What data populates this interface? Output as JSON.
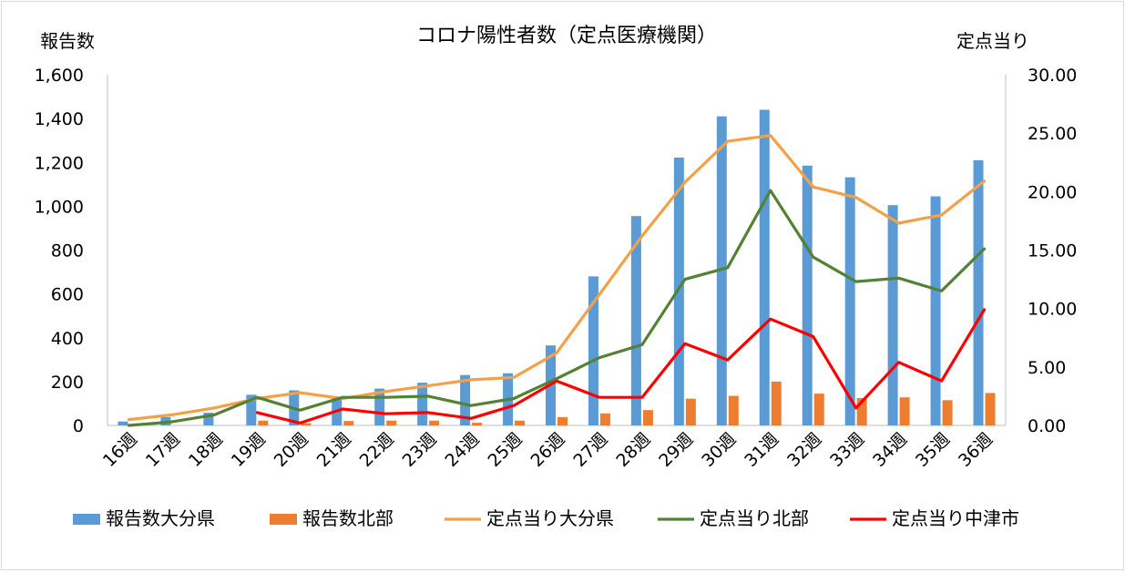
{
  "chart_data": {
    "type": "bar+line",
    "title": "コロナ陽性者数（定点医療機関）",
    "ylabel_left": "報告数",
    "ylabel_right": "定点当り",
    "ylim_left": [
      0,
      1600
    ],
    "ylim_right": [
      0,
      30
    ],
    "yticks_left": [
      "0",
      "200",
      "400",
      "600",
      "800",
      "1,000",
      "1,200",
      "1,400",
      "1,600"
    ],
    "yticks_right": [
      "0.00",
      "5.00",
      "10.00",
      "15.00",
      "20.00",
      "25.00",
      "30.00"
    ],
    "categories": [
      "16週",
      "17週",
      "18週",
      "19週",
      "20週",
      "21週",
      "22週",
      "23週",
      "24週",
      "25週",
      "26週",
      "27週",
      "28週",
      "29週",
      "30週",
      "31週",
      "32週",
      "33週",
      "34週",
      "35週",
      "36週"
    ],
    "grid": "none",
    "legend_position": "bottom",
    "bar_series": [
      {
        "name": "報告数大分県",
        "color": "#5b9bd5",
        "values": [
          18,
          38,
          58,
          140,
          160,
          130,
          168,
          195,
          230,
          238,
          365,
          680,
          955,
          1222,
          1410,
          1440,
          1185,
          1132,
          1005,
          1045,
          1210
        ]
      },
      {
        "name": "報告数北部",
        "color": "#ed7d31",
        "values": [
          0,
          0,
          0,
          22,
          10,
          20,
          22,
          22,
          12,
          22,
          38,
          55,
          70,
          122,
          135,
          200,
          145,
          125,
          128,
          115,
          148
        ]
      }
    ],
    "line_series": [
      {
        "name": "定点当り大分県",
        "color": "#f4a048",
        "values": [
          0.5,
          0.9,
          1.5,
          2.3,
          2.8,
          2.3,
          2.9,
          3.4,
          3.9,
          4.1,
          6.2,
          11.2,
          16.2,
          20.8,
          24.3,
          24.8,
          20.4,
          19.5,
          17.3,
          18.0,
          20.9
        ]
      },
      {
        "name": "定点当り北部",
        "color": "#548235",
        "values": [
          0.0,
          0.3,
          0.9,
          2.4,
          1.3,
          2.4,
          2.4,
          2.5,
          1.7,
          2.3,
          4.0,
          5.8,
          6.9,
          12.5,
          13.5,
          20.1,
          14.4,
          12.3,
          12.6,
          11.5,
          15.1
        ]
      },
      {
        "name": "定点当り中津市",
        "color": "#ff0000",
        "values": [
          null,
          null,
          null,
          1.1,
          0.2,
          1.4,
          1.0,
          1.1,
          0.6,
          1.7,
          3.8,
          2.4,
          2.4,
          7.0,
          5.6,
          9.1,
          7.6,
          1.5,
          5.4,
          3.8,
          9.9
        ]
      }
    ]
  }
}
